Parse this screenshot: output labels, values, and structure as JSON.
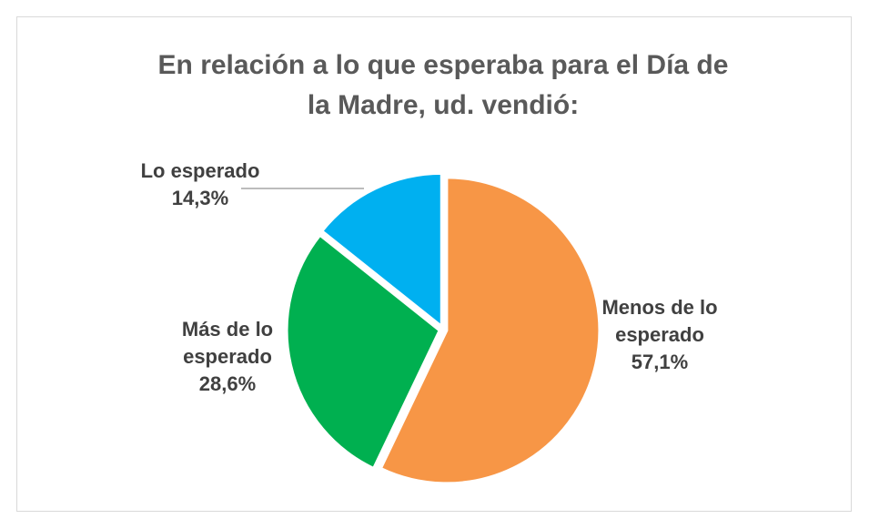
{
  "chart_data": {
    "type": "pie",
    "title": "En relación a lo que esperaba para el Día de la Madre, ud. vendió:",
    "categories": [
      "Menos de lo esperado",
      "Más de lo esperado",
      "Lo esperado"
    ],
    "values": [
      57.1,
      28.6,
      14.3
    ],
    "value_labels": [
      "57,1%",
      "28,6%",
      "14,3%"
    ],
    "colors": [
      "#F79646",
      "#00B050",
      "#00B0F0"
    ]
  }
}
